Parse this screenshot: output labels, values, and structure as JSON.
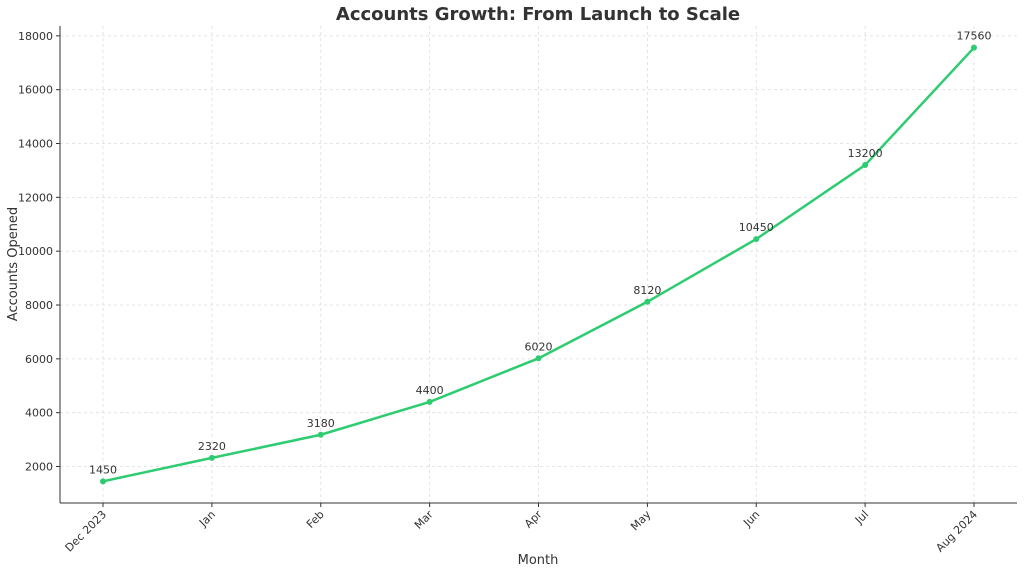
{
  "chart_data": {
    "type": "line",
    "title": "Accounts Growth: From Launch to Scale",
    "x_label": "Month",
    "y_label": "Accounts Opened",
    "categories": [
      "Dec 2023",
      "Jan",
      "Feb",
      "Mar",
      "Apr",
      "May",
      "Jun",
      "Jul",
      "Aug 2024"
    ],
    "series": [
      {
        "name": "Accounts Opened",
        "color": "#2ecc71",
        "values": [
          1450,
          2320,
          3180,
          4400,
          6020,
          8120,
          10450,
          13200,
          17560
        ]
      }
    ],
    "ylim": [
      644.5,
      18365.5
    ],
    "yticks": [
      2000,
      4000,
      6000,
      8000,
      10000,
      12000,
      14000,
      16000,
      18000
    ],
    "grid": true,
    "data_labels": true
  }
}
